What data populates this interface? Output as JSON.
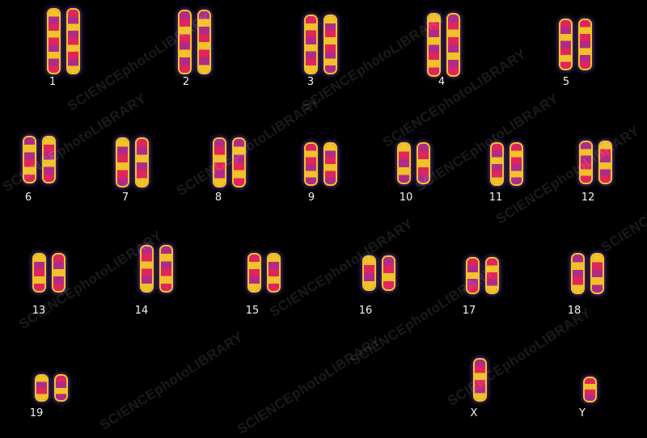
{
  "image": {
    "description_labels": [
      "1",
      "2",
      "3",
      "4",
      "5",
      "6",
      "7",
      "8",
      "9",
      "10",
      "11",
      "12",
      "13",
      "14",
      "15",
      "16",
      "17",
      "18",
      "19",
      "X",
      "Y"
    ],
    "watermark": "SCIENCEphotoLIBRARY",
    "colors": {
      "background": "#000000",
      "band_red": "#e0245e",
      "band_yellow": "#f2c22a",
      "halo_purple": "#5a3a8a",
      "label": "#f2f2f2"
    }
  },
  "chromosomes": [
    {
      "label": "1"
    },
    {
      "label": "2"
    },
    {
      "label": "3"
    },
    {
      "label": "4"
    },
    {
      "label": "5"
    },
    {
      "label": "6"
    },
    {
      "label": "7"
    },
    {
      "label": "8"
    },
    {
      "label": "9"
    },
    {
      "label": "10"
    },
    {
      "label": "11"
    },
    {
      "label": "12"
    },
    {
      "label": "13"
    },
    {
      "label": "14"
    },
    {
      "label": "15"
    },
    {
      "label": "16"
    },
    {
      "label": "17"
    },
    {
      "label": "18"
    },
    {
      "label": "19"
    },
    {
      "label": "X"
    },
    {
      "label": "Y"
    }
  ]
}
